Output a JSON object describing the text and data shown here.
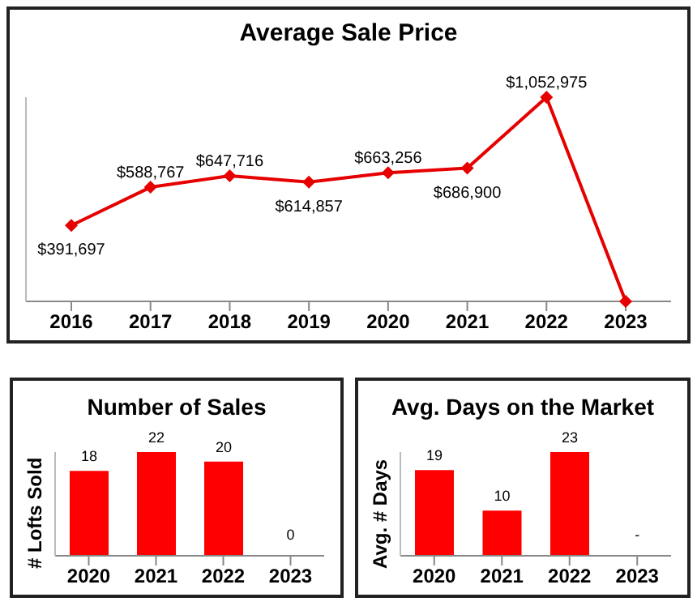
{
  "chart_data": [
    {
      "type": "line",
      "title": "Average Sale Price",
      "categories": [
        "2016",
        "2017",
        "2018",
        "2019",
        "2020",
        "2021",
        "2022",
        "2023"
      ],
      "series": [
        {
          "color": "#e60000",
          "values": [
            391697,
            588767,
            647716,
            614857,
            663256,
            686900,
            1052975,
            0
          ],
          "value_labels": [
            "$391,697",
            "$588,767",
            "$647,716",
            "$614,857",
            "$663,256",
            "$686,900",
            "$1,052,975",
            null
          ]
        }
      ],
      "marker": "diamond",
      "grid": false,
      "legend": false
    },
    {
      "type": "bar",
      "title": "Number of Sales",
      "ylabel": "# Lofts Sold",
      "categories": [
        "2020",
        "2021",
        "2022",
        "2023"
      ],
      "series": [
        {
          "color": "#ff0000",
          "values": [
            18,
            22,
            20,
            0
          ]
        }
      ],
      "data_labels": true,
      "grid": false,
      "legend": false
    },
    {
      "type": "bar",
      "title": "Avg. Days on the Market",
      "ylabel": "Avg. # Days",
      "categories": [
        "2020",
        "2021",
        "2022",
        "2023"
      ],
      "series": [
        {
          "color": "#ff0000",
          "values": [
            19,
            10,
            23,
            null
          ],
          "value_labels": [
            "19",
            "10",
            "23",
            "-"
          ]
        }
      ],
      "grid": false,
      "legend": false
    }
  ]
}
